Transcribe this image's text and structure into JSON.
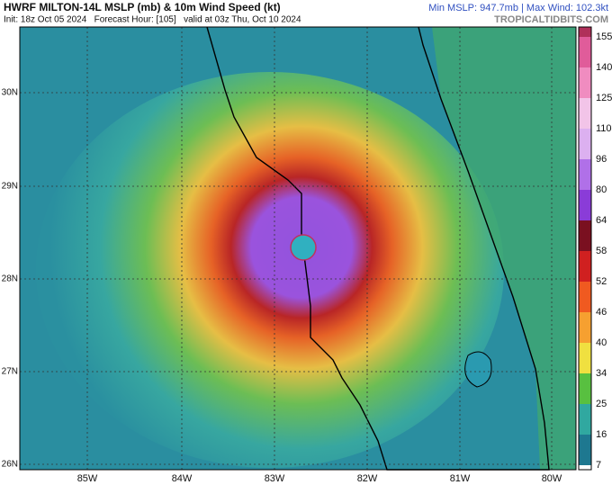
{
  "header": {
    "title": "HWRF MILTON-14L MSLP (mb) & 10m Wind Speed (kt)",
    "subtitle": "Init: 18z Oct 05 2024   Forecast Hour: [105]   valid at 03z Thu, Oct 10 2024",
    "stats": "Min MSLP: 947.7mb | Max Wind: 102.3kt",
    "source": "TROPICALTIDBITS.COM"
  },
  "map": {
    "lon_labels": [
      "85W",
      "84W",
      "83W",
      "82W",
      "81W",
      "80W"
    ],
    "lat_labels": [
      "30N",
      "29N",
      "28N",
      "27N",
      "26N"
    ]
  },
  "colorbar": {
    "labels": [
      "155",
      "140",
      "125",
      "110",
      "96",
      "80",
      "64",
      "58",
      "52",
      "46",
      "40",
      "34",
      "25",
      "16",
      "7"
    ],
    "colors": [
      "#b0305a",
      "#e05c9a",
      "#f08cc0",
      "#f2c4e8",
      "#dcb0f0",
      "#b070e8",
      "#8a3cd8",
      "#7a1020",
      "#d02020",
      "#f05a20",
      "#f6a030",
      "#f0e040",
      "#58c040",
      "#30a8a0",
      "#1e7890"
    ]
  }
}
